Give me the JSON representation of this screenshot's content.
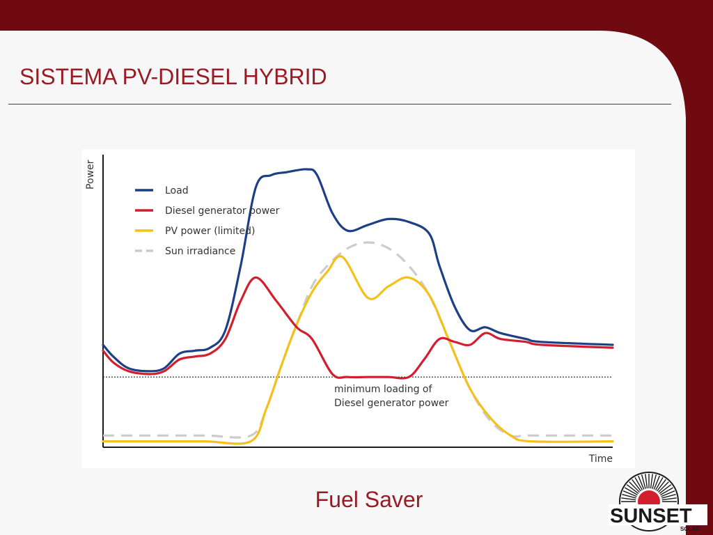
{
  "slide": {
    "title": "SISTEMA PV-DIESEL HYBRID",
    "caption": "Fuel Saver"
  },
  "logo": {
    "wordmark": "SUNSET",
    "subtext": "SOLAR"
  },
  "colors": {
    "frame": "#6e0a10",
    "slide_bg": "#f7f7f7",
    "title": "#9a1a24",
    "load": "#1c3f85",
    "diesel": "#d11f2e",
    "pv": "#f4c01b",
    "sun": "#cccccc"
  },
  "chart_data": {
    "type": "line",
    "xlabel": "Time",
    "ylabel": "Power",
    "xlim": [
      0,
      100
    ],
    "ylim": [
      0,
      100
    ],
    "legend_position": "top-left",
    "grid": false,
    "series": [
      {
        "name": "Load",
        "color": "#1c3f85",
        "style": "solid",
        "points": [
          [
            0,
            35
          ],
          [
            2,
            31
          ],
          [
            5,
            27
          ],
          [
            9,
            26
          ],
          [
            12,
            27
          ],
          [
            15,
            32
          ],
          [
            18,
            33
          ],
          [
            21,
            34
          ],
          [
            24,
            40
          ],
          [
            27,
            62
          ],
          [
            30,
            89
          ],
          [
            33,
            93
          ],
          [
            36,
            94
          ],
          [
            40,
            95
          ],
          [
            42,
            93
          ],
          [
            45,
            80
          ],
          [
            48,
            74
          ],
          [
            52,
            76
          ],
          [
            56,
            78
          ],
          [
            60,
            77
          ],
          [
            64,
            73
          ],
          [
            66,
            62
          ],
          [
            69,
            48
          ],
          [
            72,
            40
          ],
          [
            75,
            41
          ],
          [
            78,
            39
          ],
          [
            83,
            37
          ],
          [
            86,
            36
          ],
          [
            100,
            35
          ]
        ]
      },
      {
        "name": "Diesel generator power",
        "color": "#d11f2e",
        "style": "solid",
        "points": [
          [
            0,
            33
          ],
          [
            2,
            29
          ],
          [
            5,
            26
          ],
          [
            9,
            25
          ],
          [
            12,
            26
          ],
          [
            15,
            30
          ],
          [
            18,
            31
          ],
          [
            21,
            32
          ],
          [
            24,
            37
          ],
          [
            27,
            50
          ],
          [
            30,
            58
          ],
          [
            34,
            50
          ],
          [
            38,
            41
          ],
          [
            41,
            37
          ],
          [
            45,
            25
          ],
          [
            48,
            24
          ],
          [
            52,
            24
          ],
          [
            56,
            24
          ],
          [
            60,
            24
          ],
          [
            63,
            30
          ],
          [
            66,
            37
          ],
          [
            69,
            36
          ],
          [
            72,
            35
          ],
          [
            75,
            39
          ],
          [
            78,
            37
          ],
          [
            83,
            36
          ],
          [
            86,
            35
          ],
          [
            100,
            34
          ]
        ]
      },
      {
        "name": "PV power (limited)",
        "color": "#f4c01b",
        "style": "solid",
        "points": [
          [
            0,
            2
          ],
          [
            10,
            2
          ],
          [
            20,
            2
          ],
          [
            29,
            2
          ],
          [
            32,
            13
          ],
          [
            35,
            28
          ],
          [
            38,
            42
          ],
          [
            41,
            53
          ],
          [
            44,
            60
          ],
          [
            47,
            65
          ],
          [
            52,
            51
          ],
          [
            56,
            55
          ],
          [
            60,
            58
          ],
          [
            64,
            52
          ],
          [
            68,
            36
          ],
          [
            72,
            20
          ],
          [
            76,
            10
          ],
          [
            80,
            4
          ],
          [
            84,
            2
          ],
          [
            100,
            2
          ]
        ]
      },
      {
        "name": "Sun irradiance",
        "color": "#cccccc",
        "style": "dashed",
        "points": [
          [
            0,
            4
          ],
          [
            10,
            4
          ],
          [
            20,
            4
          ],
          [
            29,
            4
          ],
          [
            32,
            13
          ],
          [
            35,
            28
          ],
          [
            38,
            42
          ],
          [
            41,
            55
          ],
          [
            44,
            62
          ],
          [
            48,
            68
          ],
          [
            52,
            70
          ],
          [
            56,
            68
          ],
          [
            60,
            62
          ],
          [
            64,
            52
          ],
          [
            68,
            36
          ],
          [
            72,
            20
          ],
          [
            76,
            9
          ],
          [
            80,
            4
          ],
          [
            84,
            4
          ],
          [
            100,
            4
          ]
        ]
      }
    ],
    "threshold": {
      "value": 24,
      "style": "dotted",
      "annotation": [
        "minimum loading of",
        "Diesel generator power"
      ]
    }
  }
}
